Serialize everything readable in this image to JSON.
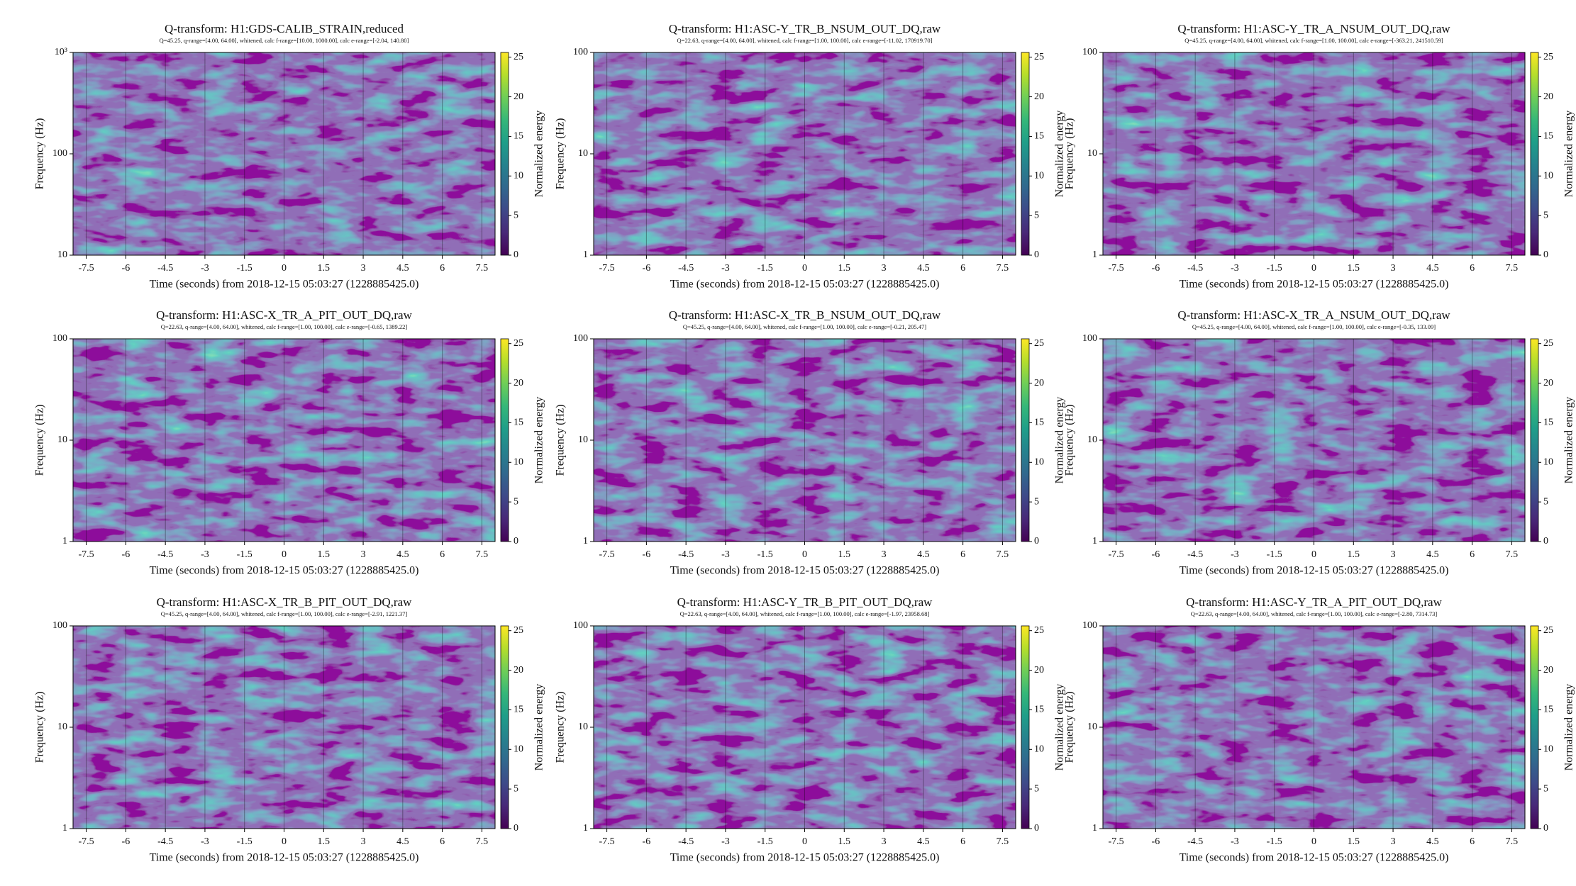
{
  "chart_data": [
    {
      "type": "spectrogram",
      "title": "Q-transform: H1:GDS-CALIB_STRAIN,reduced",
      "subtitle": "Q=45.25, q-range=[4.00, 64.00], whitened, calc f-range=[10.00, 1000.00], calc e-range=[-2.04, 140.80]",
      "x_label": "Time (seconds) from 2018-12-15 05:03:27 (1228885425.0)",
      "y_label": "Frequency (Hz)",
      "colorbar_label": "Normalized energy",
      "xlim": [
        -8,
        8
      ],
      "xticks": [
        -7.5,
        -6,
        -4.5,
        -3,
        -1.5,
        0,
        1.5,
        3,
        4.5,
        6,
        7.5
      ],
      "ylim": [
        10,
        1000
      ],
      "yticks": [
        10,
        100,
        {
          "value": 1000,
          "label": "10³"
        }
      ],
      "yscale": "log",
      "clim": [
        0,
        25.6
      ],
      "cticks": [
        0,
        5,
        10,
        15,
        20,
        25
      ],
      "colormap": "viridis",
      "grid": true
    },
    {
      "type": "spectrogram",
      "title": "Q-transform: H1:ASC-Y_TR_B_NSUM_OUT_DQ,raw",
      "subtitle": "Q=22.63, q-range=[4.00, 64.00], whitened, calc f-range=[1.00, 100.00], calc e-range=[-11.02, 170919.70]",
      "x_label": "Time (seconds) from 2018-12-15 05:03:27 (1228885425.0)",
      "y_label": "Frequency (Hz)",
      "colorbar_label": "Normalized energy",
      "xlim": [
        -8,
        8
      ],
      "xticks": [
        -7.5,
        -6,
        -4.5,
        -3,
        -1.5,
        0,
        1.5,
        3,
        4.5,
        6,
        7.5
      ],
      "ylim": [
        1,
        100
      ],
      "yticks": [
        1,
        10,
        100
      ],
      "yscale": "log",
      "clim": [
        0,
        25.6
      ],
      "cticks": [
        0,
        5,
        10,
        15,
        20,
        25
      ],
      "colormap": "viridis",
      "grid": true
    },
    {
      "type": "spectrogram",
      "title": "Q-transform: H1:ASC-Y_TR_A_NSUM_OUT_DQ,raw",
      "subtitle": "Q=45.25, q-range=[4.00, 64.00], whitened, calc f-range=[1.00, 100.00], calc e-range=[-363.21, 241510.59]",
      "x_label": "Time (seconds) from 2018-12-15 05:03:27 (1228885425.0)",
      "y_label": "Frequency (Hz)",
      "colorbar_label": "Normalized energy",
      "xlim": [
        -8,
        8
      ],
      "xticks": [
        -7.5,
        -6,
        -4.5,
        -3,
        -1.5,
        0,
        1.5,
        3,
        4.5,
        6,
        7.5
      ],
      "ylim": [
        1,
        100
      ],
      "yticks": [
        1,
        10,
        100
      ],
      "yscale": "log",
      "clim": [
        0,
        25.6
      ],
      "cticks": [
        0,
        5,
        10,
        15,
        20,
        25
      ],
      "colormap": "viridis",
      "grid": true
    },
    {
      "type": "spectrogram",
      "title": "Q-transform: H1:ASC-X_TR_A_PIT_OUT_DQ,raw",
      "subtitle": "Q=22.63, q-range=[4.00, 64.00], whitened, calc f-range=[1.00, 100.00], calc e-range=[-0.65, 1389.22]",
      "x_label": "Time (seconds) from 2018-12-15 05:03:27 (1228885425.0)",
      "y_label": "Frequency (Hz)",
      "colorbar_label": "Normalized energy",
      "xlim": [
        -8,
        8
      ],
      "xticks": [
        -7.5,
        -6,
        -4.5,
        -3,
        -1.5,
        0,
        1.5,
        3,
        4.5,
        6,
        7.5
      ],
      "ylim": [
        1,
        100
      ],
      "yticks": [
        1,
        10,
        100
      ],
      "yscale": "log",
      "clim": [
        0,
        25.6
      ],
      "cticks": [
        0,
        5,
        10,
        15,
        20,
        25
      ],
      "colormap": "viridis",
      "grid": true
    },
    {
      "type": "spectrogram",
      "title": "Q-transform: H1:ASC-X_TR_B_NSUM_OUT_DQ,raw",
      "subtitle": "Q=45.25, q-range=[4.00, 64.00], whitened, calc f-range=[1.00, 100.00], calc e-range=[-0.21, 205.47]",
      "x_label": "Time (seconds) from 2018-12-15 05:03:27 (1228885425.0)",
      "y_label": "Frequency (Hz)",
      "colorbar_label": "Normalized energy",
      "xlim": [
        -8,
        8
      ],
      "xticks": [
        -7.5,
        -6,
        -4.5,
        -3,
        -1.5,
        0,
        1.5,
        3,
        4.5,
        6,
        7.5
      ],
      "ylim": [
        1,
        100
      ],
      "yticks": [
        1,
        10,
        100
      ],
      "yscale": "log",
      "clim": [
        0,
        25.6
      ],
      "cticks": [
        0,
        5,
        10,
        15,
        20,
        25
      ],
      "colormap": "viridis",
      "grid": true
    },
    {
      "type": "spectrogram",
      "title": "Q-transform: H1:ASC-X_TR_A_NSUM_OUT_DQ,raw",
      "subtitle": "Q=45.25, q-range=[4.00, 64.00], whitened, calc f-range=[1.00, 100.00], calc e-range=[-0.35, 133.09]",
      "x_label": "Time (seconds) from 2018-12-15 05:03:27 (1228885425.0)",
      "y_label": "Frequency (Hz)",
      "colorbar_label": "Normalized energy",
      "xlim": [
        -8,
        8
      ],
      "xticks": [
        -7.5,
        -6,
        -4.5,
        -3,
        -1.5,
        0,
        1.5,
        3,
        4.5,
        6,
        7.5
      ],
      "ylim": [
        1,
        100
      ],
      "yticks": [
        1,
        10,
        100
      ],
      "yscale": "log",
      "clim": [
        0,
        25.6
      ],
      "cticks": [
        0,
        5,
        10,
        15,
        20,
        25
      ],
      "colormap": "viridis",
      "grid": true
    },
    {
      "type": "spectrogram",
      "title": "Q-transform: H1:ASC-X_TR_B_PIT_OUT_DQ,raw",
      "subtitle": "Q=45.25, q-range=[4.00, 64.00], whitened, calc f-range=[1.00, 100.00], calc e-range=[-2.91, 1221.37]",
      "x_label": "Time (seconds) from 2018-12-15 05:03:27 (1228885425.0)",
      "y_label": "Frequency (Hz)",
      "colorbar_label": "Normalized energy",
      "xlim": [
        -8,
        8
      ],
      "xticks": [
        -7.5,
        -6,
        -4.5,
        -3,
        -1.5,
        0,
        1.5,
        3,
        4.5,
        6,
        7.5
      ],
      "ylim": [
        1,
        100
      ],
      "yticks": [
        1,
        10,
        100
      ],
      "yscale": "log",
      "clim": [
        0,
        25.6
      ],
      "cticks": [
        0,
        5,
        10,
        15,
        20,
        25
      ],
      "colormap": "viridis",
      "grid": true
    },
    {
      "type": "spectrogram",
      "title": "Q-transform: H1:ASC-Y_TR_B_PIT_OUT_DQ,raw",
      "subtitle": "Q=22.63, q-range=[4.00, 64.00], whitened, calc f-range=[1.00, 100.00], calc e-range=[-1.97, 23958.68]",
      "x_label": "Time (seconds) from 2018-12-15 05:03:27 (1228885425.0)",
      "y_label": "Frequency (Hz)",
      "colorbar_label": "Normalized energy",
      "xlim": [
        -8,
        8
      ],
      "xticks": [
        -7.5,
        -6,
        -4.5,
        -3,
        -1.5,
        0,
        1.5,
        3,
        4.5,
        6,
        7.5
      ],
      "ylim": [
        1,
        100
      ],
      "yticks": [
        1,
        10,
        100
      ],
      "yscale": "log",
      "clim": [
        0,
        25.6
      ],
      "cticks": [
        0,
        5,
        10,
        15,
        20,
        25
      ],
      "colormap": "viridis",
      "grid": true
    },
    {
      "type": "spectrogram",
      "title": "Q-transform: H1:ASC-Y_TR_A_PIT_OUT_DQ,raw",
      "subtitle": "Q=22.63, q-range=[4.00, 64.00], whitened, calc f-range=[1.00, 100.00], calc e-range=[-2.80, 7314.73]",
      "x_label": "Time (seconds) from 2018-12-15 05:03:27 (1228885425.0)",
      "y_label": "Frequency (Hz)",
      "colorbar_label": "Normalized energy",
      "xlim": [
        -8,
        8
      ],
      "xticks": [
        -7.5,
        -6,
        -4.5,
        -3,
        -1.5,
        0,
        1.5,
        3,
        4.5,
        6,
        7.5
      ],
      "ylim": [
        1,
        100
      ],
      "yticks": [
        1,
        10,
        100
      ],
      "yscale": "log",
      "clim": [
        0,
        25.6
      ],
      "cticks": [
        0,
        5,
        10,
        15,
        20,
        25
      ],
      "colormap": "viridis",
      "grid": true
    }
  ]
}
